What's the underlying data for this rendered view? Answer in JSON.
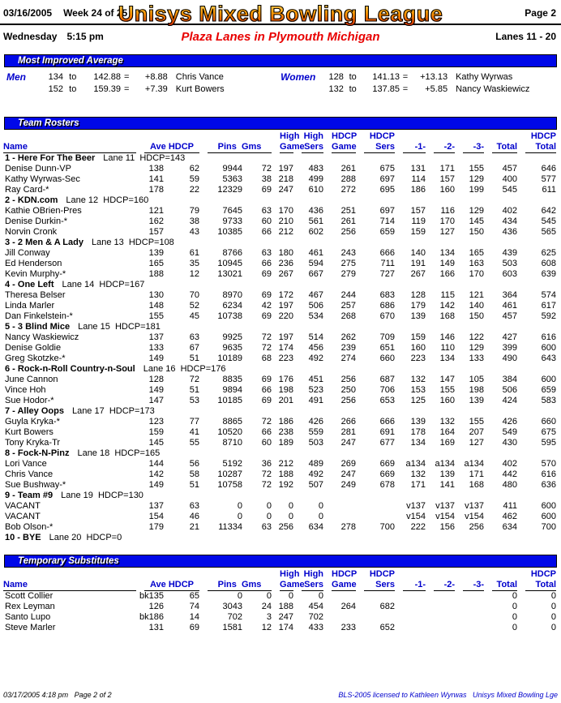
{
  "header": {
    "date": "03/16/2005",
    "week": "Week 24 of 25",
    "title": "Unisys Mixed Bowling League",
    "page": "Page 2",
    "day": "Wednesday",
    "time": "5:15 pm",
    "venue": "Plaza Lanes in Plymouth Michigan",
    "lanes": "Lanes 11 - 20"
  },
  "colors": {
    "accent_blue": "#0008e8",
    "header_text_blue": "#0000cc",
    "venue_red": "#e80000",
    "title_orange": "#e85d00"
  },
  "most_improved": {
    "title": "Most Improved Average",
    "men": {
      "label": "Men",
      "rows": [
        [
          "134",
          "to",
          "142.88",
          "=",
          "+8.88",
          "Chris Vance"
        ],
        [
          "152",
          "to",
          "159.39",
          "=",
          "+7.39",
          "Kurt Bowers"
        ]
      ]
    },
    "women": {
      "label": "Women",
      "rows": [
        [
          "128",
          "to",
          "141.13",
          "=",
          "+13.13",
          "Kathy Wyrwas"
        ],
        [
          "132",
          "to",
          "137.85",
          "=",
          "+5.85",
          "Nancy Waskiewicz"
        ]
      ]
    }
  },
  "columns": {
    "name": "Name",
    "ave_hdcp": "Ave HDCP",
    "pins_gms": "Pins  Gms",
    "high_game": {
      "l1": "High",
      "l2": "Game"
    },
    "high_sers": {
      "l1": "High",
      "l2": "Sers"
    },
    "hdcp_game": {
      "l1": "HDCP",
      "l2": "Game"
    },
    "hdcp_sers": {
      "l1": "HDCP",
      "l2": "Sers"
    },
    "g1": "-1-",
    "g2": "-2-",
    "g3": "-3-",
    "total": "Total",
    "hdcp_total": {
      "l1": "HDCP",
      "l2": "Total"
    }
  },
  "team_rosters": {
    "title": "Team Rosters",
    "teams": [
      {
        "title": "1 - Here For The Beer",
        "lane": "Lane 11",
        "hdcp": "HDCP=143",
        "players": [
          [
            "Denise Dunn-VP",
            "138",
            "62",
            "9944",
            "72",
            "197",
            "483",
            "261",
            "675",
            "131",
            "171",
            "155",
            "457",
            "646"
          ],
          [
            "Kathy Wyrwas-Sec",
            "141",
            "59",
            "5363",
            "38",
            "218",
            "499",
            "288",
            "697",
            "114",
            "157",
            "129",
            "400",
            "577"
          ],
          [
            "Ray Card-*",
            "178",
            "22",
            "12329",
            "69",
            "247",
            "610",
            "272",
            "695",
            "186",
            "160",
            "199",
            "545",
            "611"
          ]
        ]
      },
      {
        "title": "2 - KDN.com",
        "lane": "Lane 12",
        "hdcp": "HDCP=160",
        "players": [
          [
            "Kathie OBrien-Pres",
            "121",
            "79",
            "7645",
            "63",
            "170",
            "436",
            "251",
            "697",
            "157",
            "116",
            "129",
            "402",
            "642"
          ],
          [
            "Denise Durkin-*",
            "162",
            "38",
            "9733",
            "60",
            "210",
            "561",
            "261",
            "714",
            "119",
            "170",
            "145",
            "434",
            "545"
          ],
          [
            "Norvin Cronk",
            "157",
            "43",
            "10385",
            "66",
            "212",
            "602",
            "256",
            "659",
            "159",
            "127",
            "150",
            "436",
            "565"
          ]
        ]
      },
      {
        "title": "3 - 2 Men & A Lady",
        "lane": "Lane 13",
        "hdcp": "HDCP=108",
        "players": [
          [
            "Jill Conway",
            "139",
            "61",
            "8766",
            "63",
            "180",
            "461",
            "243",
            "666",
            "140",
            "134",
            "165",
            "439",
            "625"
          ],
          [
            "Ed Henderson",
            "165",
            "35",
            "10945",
            "66",
            "236",
            "594",
            "275",
            "711",
            "191",
            "149",
            "163",
            "503",
            "608"
          ],
          [
            "Kevin Murphy-*",
            "188",
            "12",
            "13021",
            "69",
            "267",
            "667",
            "279",
            "727",
            "267",
            "166",
            "170",
            "603",
            "639"
          ]
        ]
      },
      {
        "title": "4 - One Left",
        "lane": "Lane 14",
        "hdcp": "HDCP=167",
        "players": [
          [
            "Theresa Belser",
            "130",
            "70",
            "8970",
            "69",
            "172",
            "467",
            "244",
            "683",
            "128",
            "115",
            "121",
            "364",
            "574"
          ],
          [
            "Linda Marler",
            "148",
            "52",
            "6234",
            "42",
            "197",
            "506",
            "257",
            "686",
            "179",
            "142",
            "140",
            "461",
            "617"
          ],
          [
            "Dan Finkelstein-*",
            "155",
            "45",
            "10738",
            "69",
            "220",
            "534",
            "268",
            "670",
            "139",
            "168",
            "150",
            "457",
            "592"
          ]
        ]
      },
      {
        "title": "5 - 3 Blind Mice",
        "lane": "Lane 15",
        "hdcp": "HDCP=181",
        "players": [
          [
            "Nancy Waskiewicz",
            "137",
            "63",
            "9925",
            "72",
            "197",
            "514",
            "262",
            "709",
            "159",
            "146",
            "122",
            "427",
            "616"
          ],
          [
            "Denise Goldie",
            "133",
            "67",
            "9635",
            "72",
            "174",
            "456",
            "239",
            "651",
            "160",
            "110",
            "129",
            "399",
            "600"
          ],
          [
            "Greg Skotzke-*",
            "149",
            "51",
            "10189",
            "68",
            "223",
            "492",
            "274",
            "660",
            "223",
            "134",
            "133",
            "490",
            "643"
          ]
        ]
      },
      {
        "title": "6 - Rock-n-Roll Country-n-Soul",
        "lane": "Lane 16",
        "hdcp": "HDCP=176",
        "players": [
          [
            "June Cannon",
            "128",
            "72",
            "8835",
            "69",
            "176",
            "451",
            "256",
            "687",
            "132",
            "147",
            "105",
            "384",
            "600"
          ],
          [
            "Vince Hoh",
            "149",
            "51",
            "9894",
            "66",
            "198",
            "523",
            "250",
            "706",
            "153",
            "155",
            "198",
            "506",
            "659"
          ],
          [
            "Sue Hodor-*",
            "147",
            "53",
            "10185",
            "69",
            "201",
            "491",
            "256",
            "653",
            "125",
            "160",
            "139",
            "424",
            "583"
          ]
        ]
      },
      {
        "title": "7 - Alley Oops",
        "lane": "Lane 17",
        "hdcp": "HDCP=173",
        "players": [
          [
            "Guyla Kryka-*",
            "123",
            "77",
            "8865",
            "72",
            "186",
            "426",
            "266",
            "666",
            "139",
            "132",
            "155",
            "426",
            "660"
          ],
          [
            "Kurt Bowers",
            "159",
            "41",
            "10520",
            "66",
            "238",
            "559",
            "281",
            "691",
            "178",
            "164",
            "207",
            "549",
            "675"
          ],
          [
            "Tony Kryka-Tr",
            "145",
            "55",
            "8710",
            "60",
            "189",
            "503",
            "247",
            "677",
            "134",
            "169",
            "127",
            "430",
            "595"
          ]
        ]
      },
      {
        "title": "8 - Fock-N-Pinz",
        "lane": "Lane 18",
        "hdcp": "HDCP=165",
        "players": [
          [
            "Lori Vance",
            "144",
            "56",
            "5192",
            "36",
            "212",
            "489",
            "269",
            "669",
            "a134",
            "a134",
            "a134",
            "402",
            "570"
          ],
          [
            "Chris Vance",
            "142",
            "58",
            "10287",
            "72",
            "188",
            "492",
            "247",
            "669",
            "132",
            "139",
            "171",
            "442",
            "616"
          ],
          [
            "Sue Bushway-*",
            "149",
            "51",
            "10758",
            "72",
            "192",
            "507",
            "249",
            "678",
            "171",
            "141",
            "168",
            "480",
            "636"
          ]
        ]
      },
      {
        "title": "9 - Team #9",
        "lane": "Lane 19",
        "hdcp": "HDCP=130",
        "players": [
          [
            "VACANT",
            "137",
            "63",
            "0",
            "0",
            "0",
            "0",
            "",
            "",
            "v137",
            "v137",
            "v137",
            "411",
            "600"
          ],
          [
            "VACANT",
            "154",
            "46",
            "0",
            "0",
            "0",
            "0",
            "",
            "",
            "v154",
            "v154",
            "v154",
            "462",
            "600"
          ],
          [
            "Bob Olson-*",
            "179",
            "21",
            "11334",
            "63",
            "256",
            "634",
            "278",
            "700",
            "222",
            "156",
            "256",
            "634",
            "700"
          ]
        ]
      },
      {
        "title": "10 - BYE",
        "lane": "Lane 20",
        "hdcp": "HDCP=0",
        "players": []
      }
    ]
  },
  "temporary_substitutes": {
    "title": "Temporary Substitutes",
    "players": [
      [
        "Scott Collier",
        "bk135",
        "65",
        "0",
        "0",
        "0",
        "0",
        "",
        "",
        "",
        "",
        "",
        "0",
        "0"
      ],
      [
        "Rex Leyman",
        "126",
        "74",
        "3043",
        "24",
        "188",
        "454",
        "264",
        "682",
        "",
        "",
        "",
        "0",
        "0"
      ],
      [
        "Santo Lupo",
        "bk186",
        "14",
        "702",
        "3",
        "247",
        "702",
        "",
        "",
        "",
        "",
        "",
        "0",
        "0"
      ],
      [
        "Steve Marler",
        "131",
        "69",
        "1581",
        "12",
        "174",
        "433",
        "233",
        "652",
        "",
        "",
        "",
        "0",
        "0"
      ]
    ]
  },
  "footer": {
    "left": "03/17/2005  4:18 pm   Page 2 of 2",
    "right": "BLS-2005 licensed to Kathleen Wyrwas   Unisys Mixed Bowling Lge"
  }
}
